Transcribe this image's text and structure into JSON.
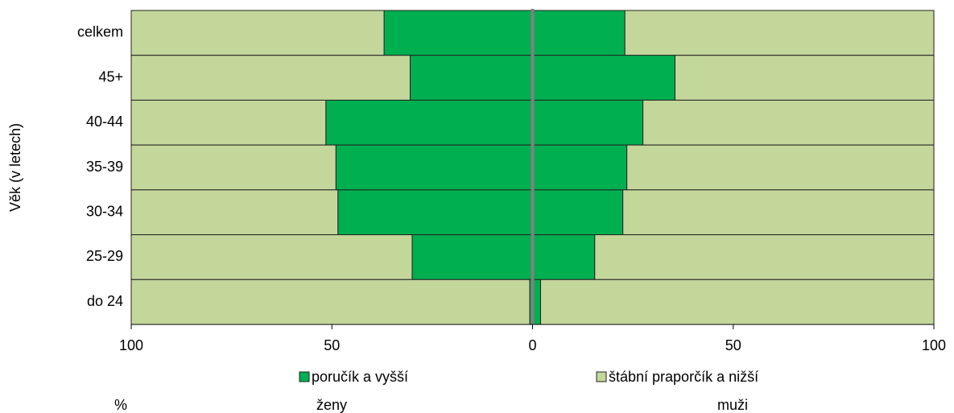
{
  "chart_data": {
    "type": "butterfly-stacked-bar",
    "y_axis_label": "Věk (v letech)",
    "unit_label": "%",
    "panels": [
      "ženy",
      "muži"
    ],
    "categories": [
      "celkem",
      "45+",
      "40-44",
      "35-39",
      "30-34",
      "25-29",
      "do 24"
    ],
    "series": [
      {
        "name": "poručík a vyšší",
        "color": "#00b050",
        "values": [
          [
            37,
            30.5,
            51.5,
            49,
            48.5,
            30,
            0.7
          ],
          [
            23,
            35.5,
            27.5,
            23.5,
            22.5,
            15.5,
            2
          ]
        ]
      },
      {
        "name": "štábní praporčík a nižší",
        "color": "#c4d79b",
        "values": [
          [
            63,
            69.5,
            48.5,
            51,
            51.5,
            70,
            99.3
          ],
          [
            77,
            64.5,
            72.5,
            76.5,
            77.5,
            84.5,
            98
          ]
        ]
      }
    ],
    "xlim": [
      -100,
      100
    ],
    "xticks": [
      {
        "value": -100,
        "label": "100"
      },
      {
        "value": -50,
        "label": "50"
      },
      0,
      50,
      100
    ]
  }
}
